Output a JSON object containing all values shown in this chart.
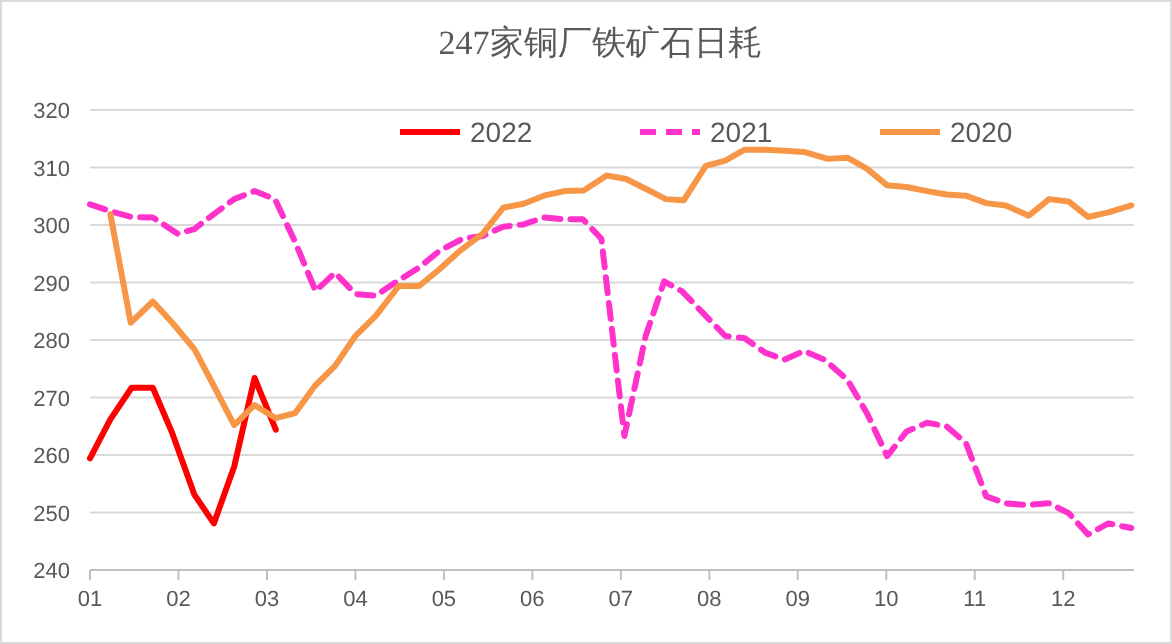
{
  "chart_data": {
    "type": "line",
    "title": "247家铜厂铁矿石日耗",
    "xlim": [
      1,
      12.8
    ],
    "ylim": [
      240,
      320
    ],
    "xticks": [
      {
        "value": 1,
        "label": "01"
      },
      {
        "value": 2,
        "label": "02"
      },
      {
        "value": 3,
        "label": "03"
      },
      {
        "value": 4,
        "label": "04"
      },
      {
        "value": 5,
        "label": "05"
      },
      {
        "value": 6,
        "label": "06"
      },
      {
        "value": 7,
        "label": "07"
      },
      {
        "value": 8,
        "label": "08"
      },
      {
        "value": 9,
        "label": "09"
      },
      {
        "value": 10,
        "label": "10"
      },
      {
        "value": 11,
        "label": "11"
      },
      {
        "value": 12,
        "label": "12"
      }
    ],
    "yticks": [
      240,
      250,
      260,
      270,
      280,
      290,
      300,
      310,
      320
    ],
    "grid": "y",
    "legend": "top",
    "series": [
      {
        "name": "2022",
        "color": "#ff0000",
        "line_style": "solid",
        "x": [
          1,
          1.23,
          1.47,
          1.71,
          1.93,
          2.18,
          2.4,
          2.63,
          2.86,
          3.1
        ],
        "values": [
          259.4,
          266.2,
          271.7,
          271.7,
          263.8,
          253.1,
          248.1,
          258.0,
          273.4,
          264.4
        ]
      },
      {
        "name": "2021",
        "color": "#ff33cc",
        "line_style": "dashed",
        "x": [
          1,
          1.23,
          1.47,
          1.71,
          1.99,
          2.18,
          2.4,
          2.63,
          2.86,
          3.09,
          3.32,
          3.55,
          3.77,
          4.0,
          4.23,
          4.45,
          4.72,
          4.95,
          5.21,
          5.44,
          5.67,
          5.9,
          6.13,
          6.36,
          6.57,
          6.78,
          7.04,
          7.28,
          7.49,
          7.69,
          7.96,
          8.18,
          8.4,
          8.63,
          8.85,
          9.07,
          9.3,
          9.56,
          9.78,
          10.01,
          10.23,
          10.46,
          10.68,
          10.9,
          11.13,
          11.35,
          11.57,
          11.84,
          12.06,
          12.28,
          12.51,
          12.77
        ],
        "values": [
          303.6,
          302.4,
          301.4,
          301.3,
          298.5,
          299.3,
          301.9,
          304.5,
          305.9,
          304.5,
          297.0,
          288.5,
          291.7,
          288.0,
          287.7,
          290.0,
          292.6,
          295.5,
          297.6,
          298.1,
          299.7,
          300.1,
          301.3,
          301.0,
          301.0,
          297.6,
          263.3,
          280.7,
          290.2,
          288.5,
          284.2,
          280.7,
          280.3,
          277.8,
          276.6,
          278.1,
          276.6,
          273.1,
          267.3,
          259.8,
          264.1,
          265.6,
          265.0,
          262.1,
          252.8,
          251.6,
          251.3,
          251.6,
          249.9,
          246.2,
          248.1,
          247.3
        ]
      },
      {
        "name": "2020",
        "color": "#f79646",
        "line_style": "solid",
        "x": [
          1.23,
          1.46,
          1.71,
          1.93,
          2.18,
          2.4,
          2.63,
          2.86,
          3.1,
          3.32,
          3.54,
          3.77,
          4.0,
          4.23,
          4.49,
          4.72,
          4.95,
          5.18,
          5.44,
          5.67,
          5.9,
          6.13,
          6.36,
          6.58,
          6.84,
          7.06,
          7.28,
          7.51,
          7.71,
          7.96,
          8.18,
          8.4,
          8.63,
          8.85,
          9.07,
          9.34,
          9.56,
          9.78,
          10.01,
          10.23,
          10.46,
          10.68,
          10.9,
          11.13,
          11.35,
          11.61,
          11.84,
          12.06,
          12.28,
          12.51,
          12.77
        ],
        "values": [
          301.9,
          283.0,
          286.7,
          283.0,
          278.4,
          272.0,
          265.2,
          268.7,
          266.4,
          267.3,
          272.0,
          275.5,
          280.7,
          284.2,
          289.4,
          289.4,
          292.3,
          295.5,
          298.5,
          303.0,
          303.7,
          305.1,
          305.9,
          306.0,
          308.6,
          308.0,
          306.3,
          304.5,
          304.3,
          310.3,
          311.2,
          313.1,
          313.1,
          312.9,
          312.7,
          311.5,
          311.7,
          309.8,
          306.9,
          306.6,
          305.9,
          305.3,
          305.1,
          303.8,
          303.4,
          301.6,
          304.5,
          304.1,
          301.4,
          302.2,
          303.4
        ]
      }
    ]
  }
}
